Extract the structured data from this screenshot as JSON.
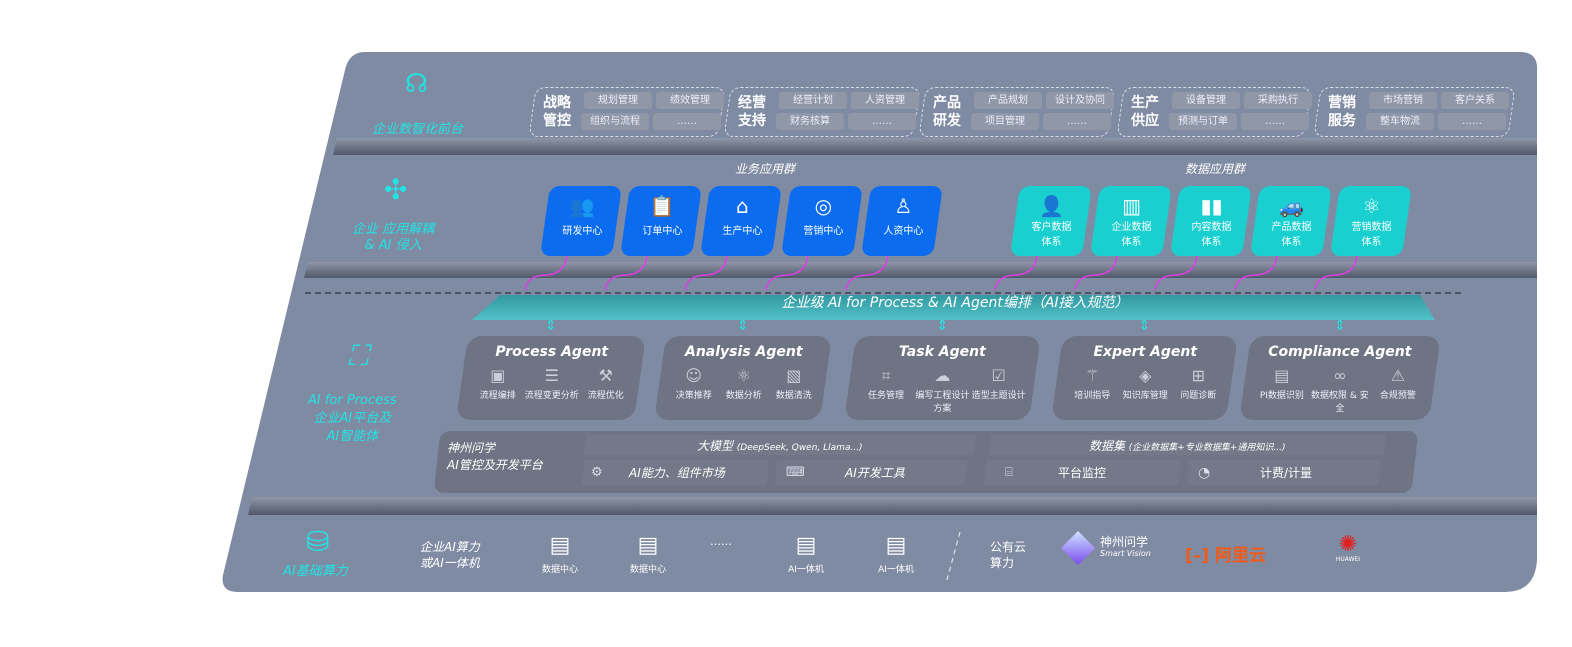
{
  "layers": {
    "frontend": {
      "label": "企业数智化前台",
      "icon": "brain-head-icon"
    },
    "apps": {
      "label_line1": "企业 应用解耦",
      "label_line2": "& AI 侵入",
      "icon": "molecule-icon"
    },
    "platform": {
      "label_line1": "AI for Process",
      "label_line2": "企业AI平台及",
      "label_line3": "AI智能体",
      "icon": "face-scan-icon"
    },
    "compute": {
      "label": "AI基础算力",
      "icon": "database-icon"
    }
  },
  "frontend_groups": [
    {
      "title1": "战略",
      "title2": "管控",
      "items": [
        "规划管理",
        "绩效管理",
        "组织与流程",
        "……"
      ]
    },
    {
      "title1": "经营",
      "title2": "支持",
      "items": [
        "经营计划",
        "人资管理",
        "财务核算",
        "……"
      ]
    },
    {
      "title1": "产品",
      "title2": "研发",
      "items": [
        "产品规划",
        "设计及协同",
        "项目管理",
        "……"
      ]
    },
    {
      "title1": "生产",
      "title2": "供应",
      "items": [
        "设备管理",
        "采购执行",
        "预测与订单",
        "……"
      ]
    },
    {
      "title1": "营销",
      "title2": "服务",
      "items": [
        "市场营销",
        "客户关系",
        "整车物流",
        "……"
      ]
    }
  ],
  "business_apps": {
    "title": "业务应用群",
    "items": [
      {
        "label": "研发中心",
        "icon": "people-icon"
      },
      {
        "label": "订单中心",
        "icon": "clipboard-icon"
      },
      {
        "label": "生产中心",
        "icon": "factory-icon"
      },
      {
        "label": "营销中心",
        "icon": "target-icon"
      },
      {
        "label": "人资中心",
        "icon": "person-growth-icon"
      }
    ]
  },
  "data_apps": {
    "title": "数据应用群",
    "items": [
      {
        "label1": "客户数据",
        "label2": "体系",
        "icon": "user-icon"
      },
      {
        "label1": "企业数据",
        "label2": "体系",
        "icon": "building-icon"
      },
      {
        "label1": "内容数据",
        "label2": "体系",
        "icon": "books-icon"
      },
      {
        "label1": "产品数据",
        "label2": "体系",
        "icon": "car-icon"
      },
      {
        "label1": "营销数据",
        "label2": "体系",
        "icon": "atom-icon"
      }
    ]
  },
  "banner": "企业级 AI for Process & AI Agent编排（AI接入规范）",
  "agents": [
    {
      "name": "Process Agent",
      "caps": [
        {
          "label": "流程编排",
          "icon": "chart-window-icon"
        },
        {
          "label": "流程变更分析",
          "icon": "list-nodes-icon"
        },
        {
          "label": "流程优化",
          "icon": "toolbox-icon"
        }
      ]
    },
    {
      "name": "Analysis Agent",
      "caps": [
        {
          "label": "决策推荐",
          "icon": "head-idea-icon"
        },
        {
          "label": "数据分析",
          "icon": "atom-icon"
        },
        {
          "label": "数据清洗",
          "icon": "data-clean-icon"
        }
      ]
    },
    {
      "name": "Task Agent",
      "caps": [
        {
          "label": "任务管理",
          "icon": "task-network-icon"
        },
        {
          "label": "编写工程设计方案",
          "icon": "cloud-icon"
        },
        {
          "label": "造型主题设计",
          "icon": "checklist-clock-icon"
        }
      ]
    },
    {
      "name": "Expert Agent",
      "caps": [
        {
          "label": "培训指导",
          "icon": "wand-icon"
        },
        {
          "label": "知识库管理",
          "icon": "layers-icon"
        },
        {
          "label": "问题诊断",
          "icon": "diagnose-icon"
        }
      ]
    },
    {
      "name": "Compliance Agent",
      "caps": [
        {
          "label": "PI数据识别",
          "icon": "id-card-icon"
        },
        {
          "label": "数据权限 & 安全",
          "icon": "link-icon"
        },
        {
          "label": "合规预警",
          "icon": "alert-box-icon"
        }
      ]
    }
  ],
  "ai_platform": {
    "title1": "神州问学",
    "title2": "AI管控及开发平台",
    "llm": "大模型",
    "llm_note": "(DeepSeek, Qwen, Llama...)",
    "market": "AI能力、组件市场",
    "devtools": "AI开发工具",
    "dataset": "数据集",
    "dataset_note": "(企业数据集+专业数据集+通用知识...)",
    "monitor": "平台监控",
    "billing": "计费/计量"
  },
  "compute": {
    "enterprise1": "企业AI算力",
    "enterprise2": "或AI一体机",
    "servers": [
      "数据中心",
      "数据中心",
      "AI一体机",
      "AI一体机"
    ],
    "ellipsis": "……",
    "public1": "公有云",
    "public2": "算力",
    "vendors": [
      {
        "name": "神州问学",
        "sub": "Smart Vision",
        "color": "#ffffff"
      },
      {
        "name": "阿里云",
        "color": "#f05a1a"
      },
      {
        "name": "HUAWEI",
        "color": "#e02020"
      }
    ]
  }
}
